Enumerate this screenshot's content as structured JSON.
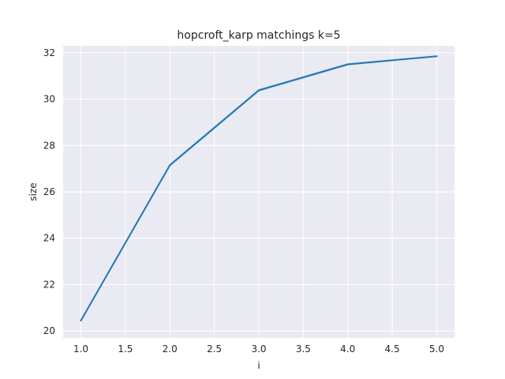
{
  "chart_data": {
    "type": "line",
    "title": "hopcroft_karp matchings k=5",
    "xlabel": "i",
    "ylabel": "size",
    "x": [
      1.0,
      2.0,
      3.0,
      4.0,
      5.0
    ],
    "series": [
      {
        "values": [
          20.45,
          27.15,
          30.38,
          31.5,
          31.85
        ],
        "ci_low": [
          20.4,
          27.08,
          30.32,
          31.45,
          31.82
        ],
        "ci_high": [
          20.5,
          27.22,
          30.44,
          31.55,
          31.88
        ],
        "color": "#1f77b4"
      }
    ],
    "xlim": [
      0.8,
      5.2
    ],
    "ylim": [
      19.7,
      32.3
    ],
    "xticks": [
      "1.0",
      "1.5",
      "2.0",
      "2.5",
      "3.0",
      "3.5",
      "4.0",
      "4.5",
      "5.0"
    ],
    "yticks": [
      "20",
      "22",
      "24",
      "26",
      "28",
      "30",
      "32"
    ],
    "grid": true,
    "style": {
      "background": "#eaeaf2",
      "grid_color": "#ffffff"
    }
  }
}
